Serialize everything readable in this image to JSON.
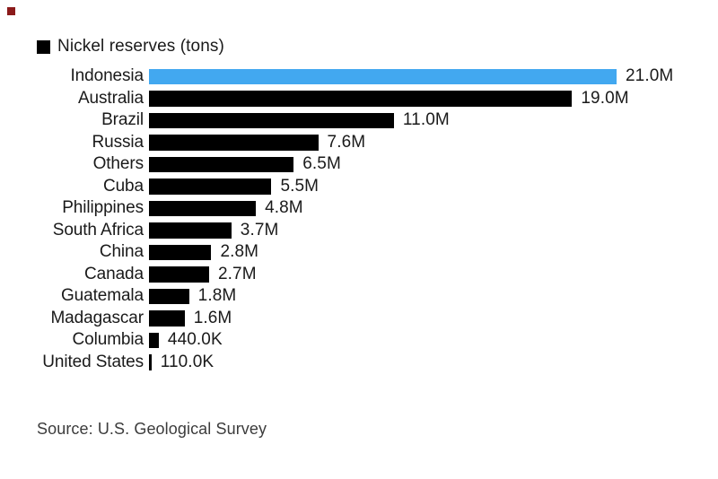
{
  "page": {
    "background": "#ffffff",
    "corner_marker_color": "#8b1a1a"
  },
  "legend": {
    "label": "Nickel reserves (tons)",
    "swatch_color": "#000000"
  },
  "source": {
    "text": "Source: U.S. Geological Survey"
  },
  "chart_data": {
    "type": "bar",
    "orientation": "horizontal",
    "title": "Nickel reserves (tons)",
    "unit": "tons",
    "categories": [
      "Indonesia",
      "Australia",
      "Brazil",
      "Russia",
      "Others",
      "Cuba",
      "Philippines",
      "South Africa",
      "China",
      "Canada",
      "Guatemala",
      "Madagascar",
      "Columbia",
      "United States"
    ],
    "values_million_tons": [
      21.0,
      19.0,
      11.0,
      7.6,
      6.5,
      5.5,
      4.8,
      3.7,
      2.8,
      2.7,
      1.8,
      1.6,
      0.44,
      0.11
    ],
    "value_labels": [
      "21.0M",
      "19.0M",
      "11.0M",
      "7.6M",
      "6.5M",
      "5.5M",
      "4.8M",
      "3.7M",
      "2.8M",
      "2.7M",
      "1.8M",
      "1.6M",
      "440.0K",
      "110.0K"
    ],
    "bar_color": "#000000",
    "highlight_color": "#42a8f0",
    "highlight_index": 0,
    "highlight_category": "Indonesia",
    "xlim_million_tons": [
      0,
      21
    ],
    "grid": false,
    "legend_position": "top-left",
    "value_label_position": "right-of-bar",
    "source": "Source: U.S. Geological Survey"
  }
}
